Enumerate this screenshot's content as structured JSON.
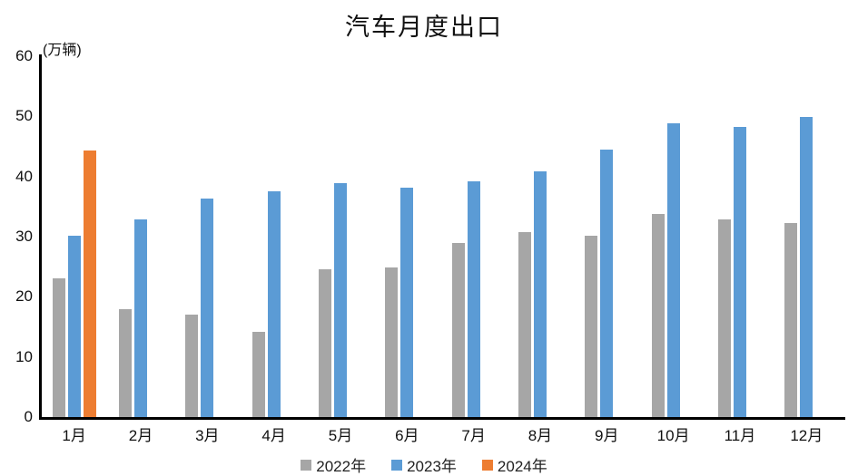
{
  "chart_data": {
    "type": "bar",
    "title": "汽车月度出口",
    "unit_label": "(万辆)",
    "categories": [
      "1月",
      "2月",
      "3月",
      "4月",
      "5月",
      "6月",
      "7月",
      "8月",
      "9月",
      "10月",
      "11月",
      "12月"
    ],
    "series": [
      {
        "name": "2022年",
        "color": "#a6a6a6",
        "values": [
          23.1,
          18.0,
          17.0,
          14.1,
          24.5,
          24.9,
          29.0,
          30.8,
          30.1,
          33.7,
          32.9,
          32.3
        ]
      },
      {
        "name": "2023年",
        "color": "#5b9bd5",
        "values": [
          30.1,
          32.9,
          36.4,
          37.6,
          38.9,
          38.2,
          39.2,
          40.8,
          44.4,
          48.8,
          48.2,
          49.9
        ]
      },
      {
        "name": "2024年",
        "color": "#ed7d31",
        "values": [
          44.3,
          null,
          null,
          null,
          null,
          null,
          null,
          null,
          null,
          null,
          null,
          null
        ]
      }
    ],
    "ylim": [
      0,
      60
    ],
    "yticks": [
      0,
      10,
      20,
      30,
      40,
      50,
      60
    ],
    "grid": false,
    "legend_position": "bottom",
    "axis_color": "#000000"
  }
}
